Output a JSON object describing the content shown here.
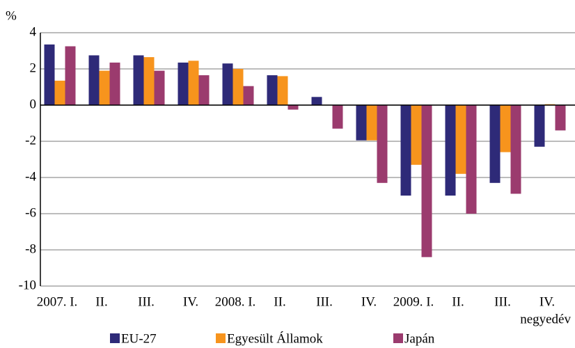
{
  "chart_data": {
    "type": "bar",
    "y_axis_label": "%",
    "x_axis_label": "negyedév",
    "categories": [
      "2007. I.",
      "II.",
      "III.",
      "IV.",
      "2008. I.",
      "II.",
      "III.",
      "IV.",
      "2009. I.",
      "II.",
      "III.",
      "IV."
    ],
    "series": [
      {
        "name": "EU-27",
        "color": "#2e2a78",
        "values": [
          3.35,
          2.75,
          2.75,
          2.35,
          2.3,
          1.65,
          0.45,
          -1.95,
          -5.0,
          -5.0,
          -4.3,
          -2.3
        ]
      },
      {
        "name": "Egyesült Államok",
        "color": "#f7941d",
        "values": [
          1.35,
          1.9,
          2.65,
          2.45,
          2.0,
          1.6,
          0,
          -1.95,
          -3.3,
          -3.8,
          -2.6,
          0.05
        ]
      },
      {
        "name": "Japán",
        "color": "#9b3b6e",
        "values": [
          3.25,
          2.35,
          1.9,
          1.65,
          1.05,
          -0.25,
          -1.3,
          -4.3,
          -8.4,
          -6.0,
          -4.9,
          -1.4
        ]
      }
    ],
    "ylim": [
      -10,
      4
    ],
    "yticks": [
      -10,
      -8,
      -6,
      -4,
      -2,
      0,
      2,
      4
    ],
    "grid": true,
    "legend": "bottom"
  }
}
